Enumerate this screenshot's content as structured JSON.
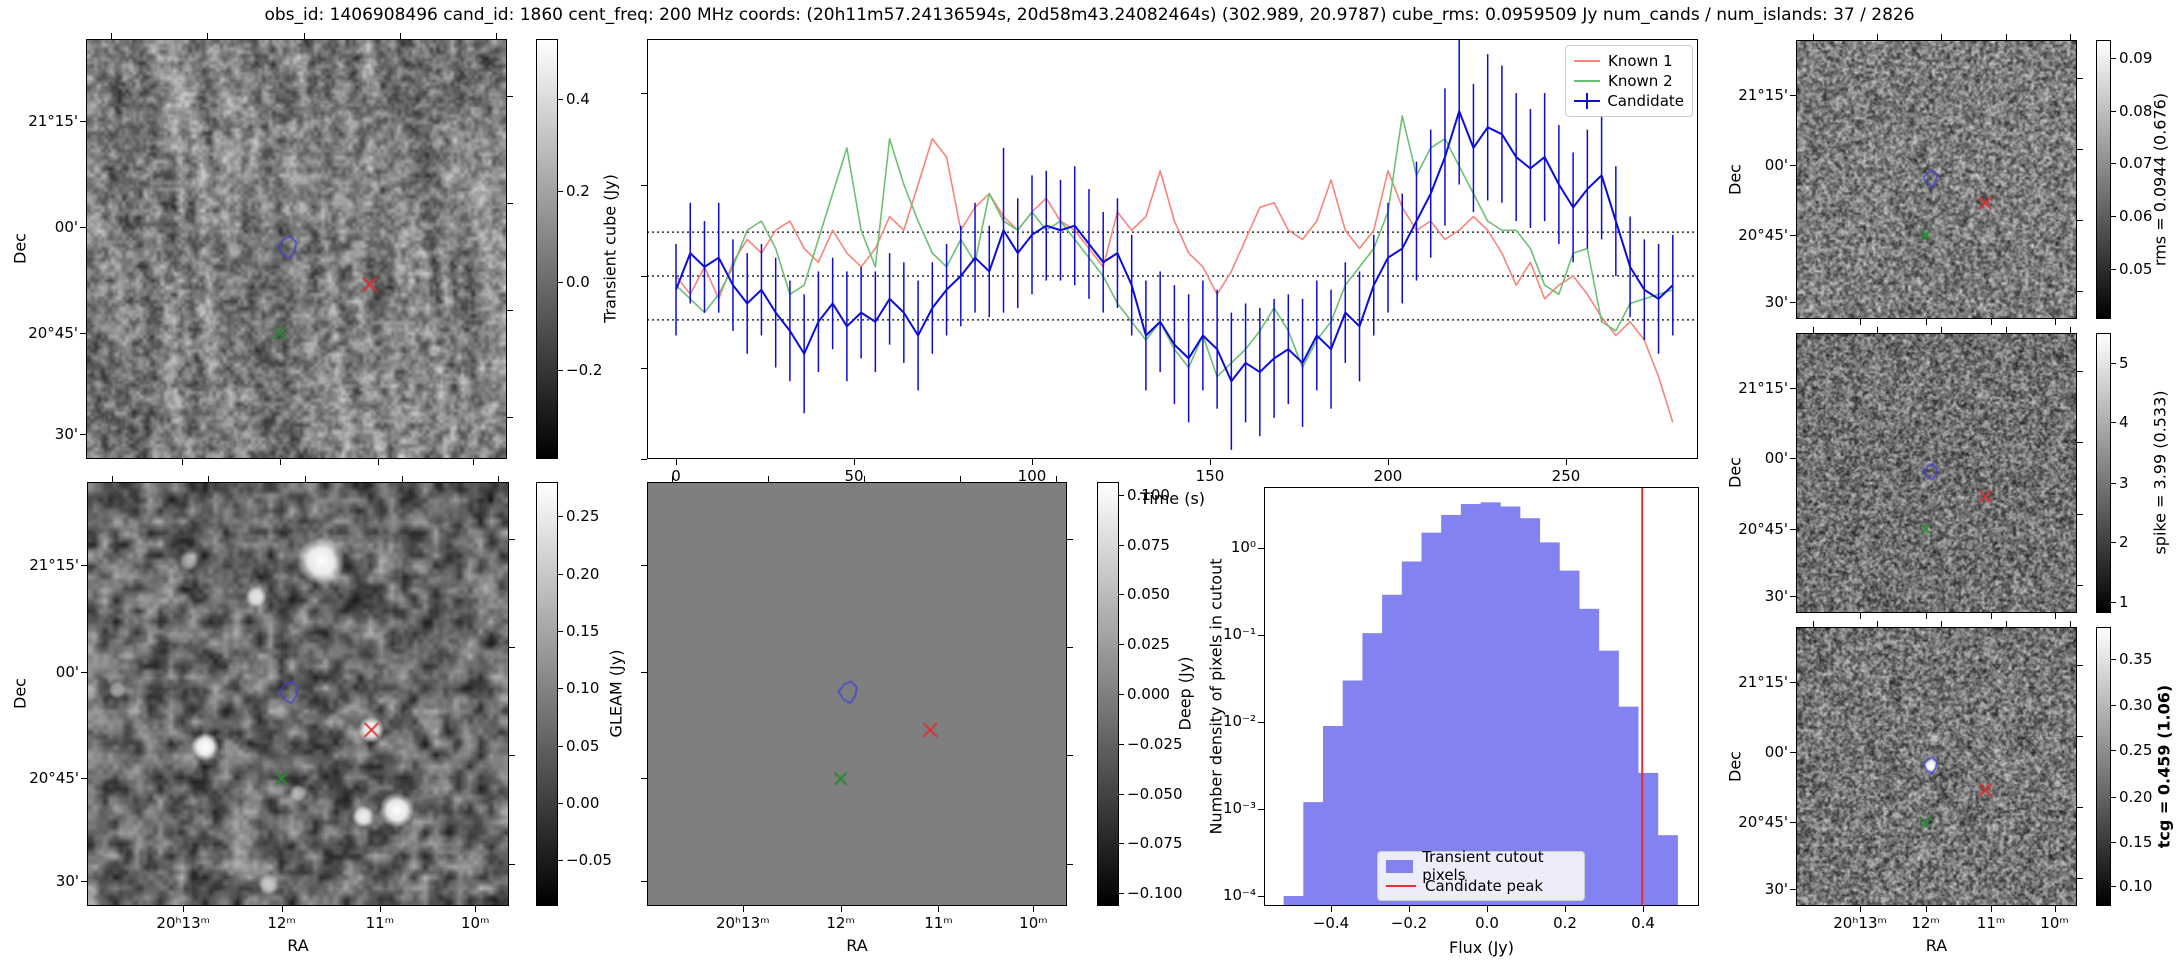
{
  "title": "obs_id: 1406908496 cand_id: 1860 cent_freq: 200 MHz coords: (20h11m57.24136594s, 20d58m43.24082464s) (302.989, 20.9787) cube_rms: 0.0959509 Jy num_cands / num_islands: 37 / 2826",
  "colors": {
    "known1": "#f8857c",
    "known2": "#6fbf73",
    "candidate": "#0d0dd6",
    "hist_fill": "#8282f0",
    "hist_line": "#e53030",
    "contour": "#4343d2",
    "red_x": "#d93030",
    "green_x": "#2a8a35",
    "dotted_line": "#000000"
  },
  "axes": {
    "dec_label": "Dec",
    "ra_label": "RA",
    "dec_ticks": [
      {
        "label": "21°15'",
        "f": 0.196
      },
      {
        "label": "00'",
        "f": 0.448
      },
      {
        "label": "20°45'",
        "f": 0.699
      },
      {
        "label": "30'",
        "f": 0.94
      }
    ],
    "ra_ticks": [
      {
        "label": "20ʰ13ᵐ",
        "f": 0.228
      },
      {
        "label": "12ᵐ",
        "f": 0.461
      },
      {
        "label": "11ᵐ",
        "f": 0.694
      },
      {
        "label": "10ᵐ",
        "f": 0.92
      }
    ]
  },
  "colorbars": {
    "transient": {
      "label": "Transient cube (Jy)",
      "bold": false,
      "ticks": [
        {
          "label": "0.4",
          "f": 0.143
        },
        {
          "label": "0.2",
          "f": 0.362
        },
        {
          "label": "0.0",
          "f": 0.579
        },
        {
          "label": "−0.2",
          "f": 0.787
        }
      ]
    },
    "gleam": {
      "label": "GLEAM (Jy)",
      "bold": false,
      "ticks": [
        {
          "label": "0.25",
          "f": 0.081
        },
        {
          "label": "0.20",
          "f": 0.216
        },
        {
          "label": "0.15",
          "f": 0.351
        },
        {
          "label": "0.10",
          "f": 0.486
        },
        {
          "label": "0.05",
          "f": 0.622
        },
        {
          "label": "0.00",
          "f": 0.757
        },
        {
          "label": "−0.05",
          "f": 0.892
        }
      ]
    },
    "deep": {
      "label": "Deep (Jy)",
      "bold": false,
      "ticks": [
        {
          "label": "0.100",
          "f": 0.03
        },
        {
          "label": "0.075",
          "f": 0.1475
        },
        {
          "label": "0.050",
          "f": 0.265
        },
        {
          "label": "0.025",
          "f": 0.3825
        },
        {
          "label": "0.000",
          "f": 0.5
        },
        {
          "label": "−0.025",
          "f": 0.6175
        },
        {
          "label": "−0.050",
          "f": 0.735
        },
        {
          "label": "−0.075",
          "f": 0.8525
        },
        {
          "label": "−0.100",
          "f": 0.97
        }
      ]
    },
    "rms": {
      "label": "rms = 0.0944 (0.676)",
      "bold": false,
      "ticks": [
        {
          "label": "0.09",
          "f": 0.066
        },
        {
          "label": "0.08",
          "f": 0.254
        },
        {
          "label": "0.07",
          "f": 0.441
        },
        {
          "label": "0.06",
          "f": 0.63
        },
        {
          "label": "0.05",
          "f": 0.82
        }
      ]
    },
    "spike": {
      "label": "spike = 3.99 (0.533)",
      "bold": false,
      "ticks": [
        {
          "label": "5",
          "f": 0.107
        },
        {
          "label": "4",
          "f": 0.317
        },
        {
          "label": "3",
          "f": 0.535
        },
        {
          "label": "2",
          "f": 0.746
        },
        {
          "label": "1",
          "f": 0.96
        }
      ]
    },
    "tcg": {
      "label": "tcg = 0.459 (1.06)",
      "bold": true,
      "ticks": [
        {
          "label": "0.35",
          "f": 0.115
        },
        {
          "label": "0.30",
          "f": 0.28
        },
        {
          "label": "0.25",
          "f": 0.44
        },
        {
          "label": "0.20",
          "f": 0.61
        },
        {
          "label": "0.15",
          "f": 0.77
        },
        {
          "label": "0.10",
          "f": 0.93
        }
      ]
    }
  },
  "markers": {
    "contour": {
      "x": 0.48,
      "y": 0.495
    },
    "red_x": {
      "x": 0.675,
      "y": 0.585
    },
    "green_x": {
      "x": 0.461,
      "y": 0.701
    }
  },
  "chart_data": [
    {
      "type": "line",
      "title": "",
      "xlabel": "Time (s)",
      "ylabel": "",
      "xlim": [
        -8,
        287
      ],
      "ylim": [
        -0.4,
        0.525
      ],
      "xticks": [
        0,
        50,
        100,
        150,
        200,
        250
      ],
      "yticks_unlabeled": [
        -0.4,
        -0.2,
        0.0,
        0.2,
        0.4
      ],
      "hlines": [
        0.0959509,
        0.0,
        -0.0959509
      ],
      "legend_position": "upper right",
      "x": [
        0,
        4,
        8,
        12,
        16,
        20,
        24,
        28,
        32,
        36,
        40,
        44,
        48,
        52,
        56,
        60,
        64,
        68,
        72,
        76,
        80,
        84,
        88,
        92,
        96,
        100,
        104,
        108,
        112,
        116,
        120,
        124,
        128,
        132,
        136,
        140,
        144,
        148,
        152,
        156,
        160,
        164,
        168,
        172,
        176,
        180,
        184,
        188,
        192,
        196,
        200,
        204,
        208,
        212,
        216,
        220,
        224,
        228,
        232,
        236,
        240,
        244,
        248,
        252,
        256,
        260,
        264,
        268,
        272,
        276,
        280
      ],
      "series": [
        {
          "name": "Known 1",
          "values": [
            0.0,
            -0.04,
            0.02,
            -0.05,
            0.03,
            0.08,
            0.05,
            0.1,
            0.12,
            0.06,
            0.03,
            0.1,
            0.05,
            0.02,
            0.06,
            0.13,
            0.1,
            0.2,
            0.3,
            0.26,
            0.1,
            0.15,
            0.18,
            0.13,
            0.1,
            0.14,
            0.17,
            0.12,
            0.1,
            0.06,
            0.02,
            0.14,
            0.1,
            0.13,
            0.23,
            0.12,
            0.05,
            0.02,
            -0.04,
            0.01,
            0.08,
            0.15,
            0.16,
            0.1,
            0.08,
            0.12,
            0.21,
            0.1,
            0.06,
            0.1,
            0.23,
            0.15,
            0.1,
            0.12,
            0.08,
            0.1,
            0.13,
            0.1,
            0.05,
            -0.02,
            0.03,
            -0.05,
            -0.02,
            0.0,
            -0.04,
            -0.09,
            -0.13,
            -0.1,
            -0.14,
            -0.22,
            -0.32
          ]
        },
        {
          "name": "Known 2",
          "values": [
            -0.02,
            -0.05,
            -0.08,
            -0.04,
            0.02,
            0.1,
            0.12,
            0.06,
            -0.04,
            -0.02,
            0.08,
            0.18,
            0.28,
            0.1,
            0.02,
            0.3,
            0.2,
            0.12,
            0.05,
            0.02,
            0.08,
            0.03,
            0.18,
            0.12,
            0.1,
            0.14,
            0.1,
            0.12,
            0.08,
            0.04,
            0.0,
            -0.06,
            -0.1,
            -0.14,
            -0.1,
            -0.16,
            -0.2,
            -0.13,
            -0.22,
            -0.19,
            -0.16,
            -0.12,
            -0.07,
            -0.12,
            -0.2,
            -0.14,
            -0.1,
            -0.02,
            0.02,
            0.06,
            0.14,
            0.35,
            0.22,
            0.28,
            0.3,
            0.24,
            0.18,
            0.12,
            0.1,
            0.1,
            0.06,
            -0.02,
            -0.04,
            0.05,
            0.06,
            -0.1,
            -0.12,
            -0.06,
            -0.05,
            -0.04,
            -0.03
          ]
        },
        {
          "name": "Candidate",
          "values": [
            -0.03,
            0.05,
            0.02,
            0.04,
            -0.02,
            -0.06,
            -0.03,
            -0.08,
            -0.12,
            -0.17,
            -0.1,
            -0.06,
            -0.11,
            -0.08,
            -0.1,
            -0.05,
            -0.08,
            -0.13,
            -0.07,
            -0.03,
            0.0,
            0.04,
            0.01,
            0.1,
            0.05,
            0.09,
            0.11,
            0.1,
            0.11,
            0.07,
            0.03,
            0.05,
            -0.02,
            -0.13,
            -0.1,
            -0.15,
            -0.18,
            -0.13,
            -0.16,
            -0.23,
            -0.19,
            -0.21,
            -0.18,
            -0.16,
            -0.19,
            -0.13,
            -0.16,
            -0.08,
            -0.11,
            -0.02,
            0.04,
            0.06,
            0.12,
            0.18,
            0.26,
            0.36,
            0.28,
            0.325,
            0.31,
            0.26,
            0.235,
            0.26,
            0.2,
            0.15,
            0.19,
            0.22,
            0.12,
            0.02,
            -0.03,
            -0.05,
            -0.02
          ],
          "errors": [
            0.1,
            0.11,
            0.1,
            0.12,
            0.1,
            0.11,
            0.1,
            0.12,
            0.11,
            0.13,
            0.11,
            0.1,
            0.12,
            0.1,
            0.11,
            0.1,
            0.11,
            0.12,
            0.1,
            0.1,
            0.11,
            0.12,
            0.1,
            0.18,
            0.12,
            0.13,
            0.12,
            0.11,
            0.13,
            0.12,
            0.11,
            0.12,
            0.11,
            0.12,
            0.11,
            0.13,
            0.14,
            0.12,
            0.13,
            0.15,
            0.13,
            0.14,
            0.13,
            0.12,
            0.14,
            0.12,
            0.13,
            0.11,
            0.12,
            0.11,
            0.12,
            0.12,
            0.13,
            0.14,
            0.15,
            0.16,
            0.14,
            0.16,
            0.15,
            0.14,
            0.13,
            0.14,
            0.13,
            0.12,
            0.13,
            0.14,
            0.12,
            0.11,
            0.11,
            0.12,
            0.11
          ]
        }
      ]
    },
    {
      "type": "bar",
      "xlabel": "Flux (Jy)",
      "ylabel": "Number density of pixels in cutout",
      "yscale": "log",
      "xlim": [
        -0.575,
        0.525
      ],
      "xticks": [
        -0.4,
        -0.2,
        0.0,
        0.2,
        0.4
      ],
      "xtick_labels": [
        "−0.4",
        "−0.2",
        "0.0",
        "0.2",
        "0.4"
      ],
      "ytick_exponents": [
        0,
        -1,
        -2,
        -3,
        -4
      ],
      "ytick_labels": [
        "10⁰",
        "10⁻¹",
        "10⁻²",
        "10⁻³",
        "10⁻⁴"
      ],
      "bin_start": -0.5215,
      "bin_width": 0.0505,
      "values": [
        0.0001,
        0.0012,
        0.009,
        0.03,
        0.105,
        0.29,
        0.7,
        1.5,
        2.4,
        3.2,
        3.35,
        3.0,
        2.2,
        1.16,
        0.55,
        0.2,
        0.066,
        0.015,
        0.0026,
        0.0005
      ],
      "vline": 0.398,
      "legend": [
        {
          "label": "Transient cutout pixels",
          "type": "patch"
        },
        {
          "label": "Candidate peak",
          "type": "line"
        }
      ]
    }
  ]
}
